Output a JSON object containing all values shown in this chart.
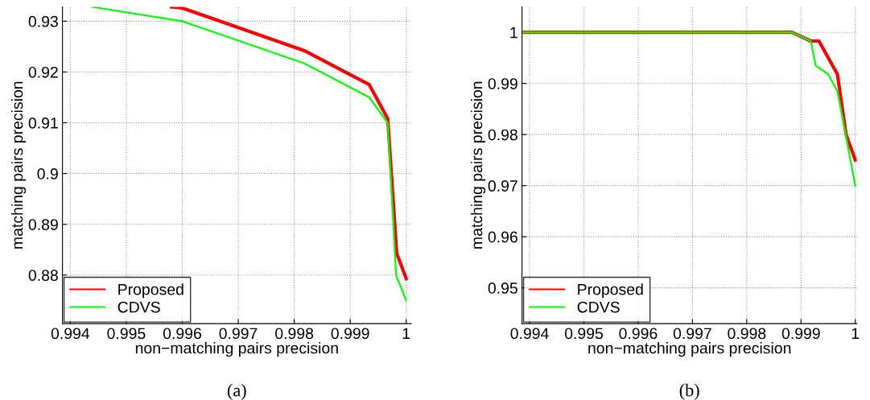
{
  "chart_data": [
    {
      "type": "line",
      "xlabel": "non−matching pairs precision",
      "ylabel": "matching pairs precision",
      "annotations": [
        "(a)"
      ],
      "xlim": [
        0.99386,
        1.00009
      ],
      "ylim": [
        0.87044,
        0.93284
      ],
      "xticks": [
        0.994,
        0.995,
        0.996,
        0.997,
        0.998,
        0.999,
        1
      ],
      "yticks": [
        0.88,
        0.89,
        0.9,
        0.91,
        0.92,
        0.93
      ],
      "grid": true,
      "legend": "bottom left",
      "line_style": "solid",
      "series": [
        {
          "name": "Proposed",
          "color": "#ff0000",
          "x": [
            0.99581,
            0.996,
            0.99818,
            0.99934,
            0.99967,
            0.99983,
            1.0
          ],
          "values": [
            0.9328,
            0.9326,
            0.9242,
            0.9175,
            0.9108,
            0.8843,
            0.8793
          ]
        },
        {
          "name": "CDVS",
          "color": "#00ff00",
          "x": [
            0.9944,
            0.996,
            0.99818,
            0.99934,
            0.99967,
            0.99982,
            1.0
          ],
          "values": [
            0.9328,
            0.93,
            0.9217,
            0.915,
            0.91,
            0.88,
            0.875
          ]
        }
      ]
    },
    {
      "type": "line",
      "xlabel": "non−matching pairs precision",
      "ylabel": "matching pairs precision",
      "annotations": [
        "(b)"
      ],
      "xlim": [
        0.99386,
        1.00003
      ],
      "ylim": [
        0.943,
        1.005
      ],
      "xticks": [
        0.994,
        0.995,
        0.996,
        0.997,
        0.998,
        0.999,
        1
      ],
      "yticks": [
        0.95,
        0.96,
        0.97,
        0.98,
        0.99,
        1
      ],
      "grid": true,
      "legend": "bottom left",
      "line_style": "solid",
      "series": [
        {
          "name": "Proposed",
          "color": "#ff0000",
          "x": [
            0.99386,
            0.99883,
            0.99918,
            0.99933,
            0.99967,
            0.99983,
            1.0
          ],
          "values": [
            1.0,
            1.0,
            0.9983,
            0.9983,
            0.9918,
            0.98,
            0.975
          ]
        },
        {
          "name": "CDVS",
          "color": "#00ff00",
          "x": [
            0.99386,
            0.99883,
            0.99918,
            0.99927,
            0.9995,
            0.99967,
            0.99984,
            1.0
          ],
          "values": [
            1.0,
            1.0,
            0.9983,
            0.9935,
            0.9918,
            0.9885,
            0.979,
            0.97
          ]
        }
      ]
    }
  ]
}
